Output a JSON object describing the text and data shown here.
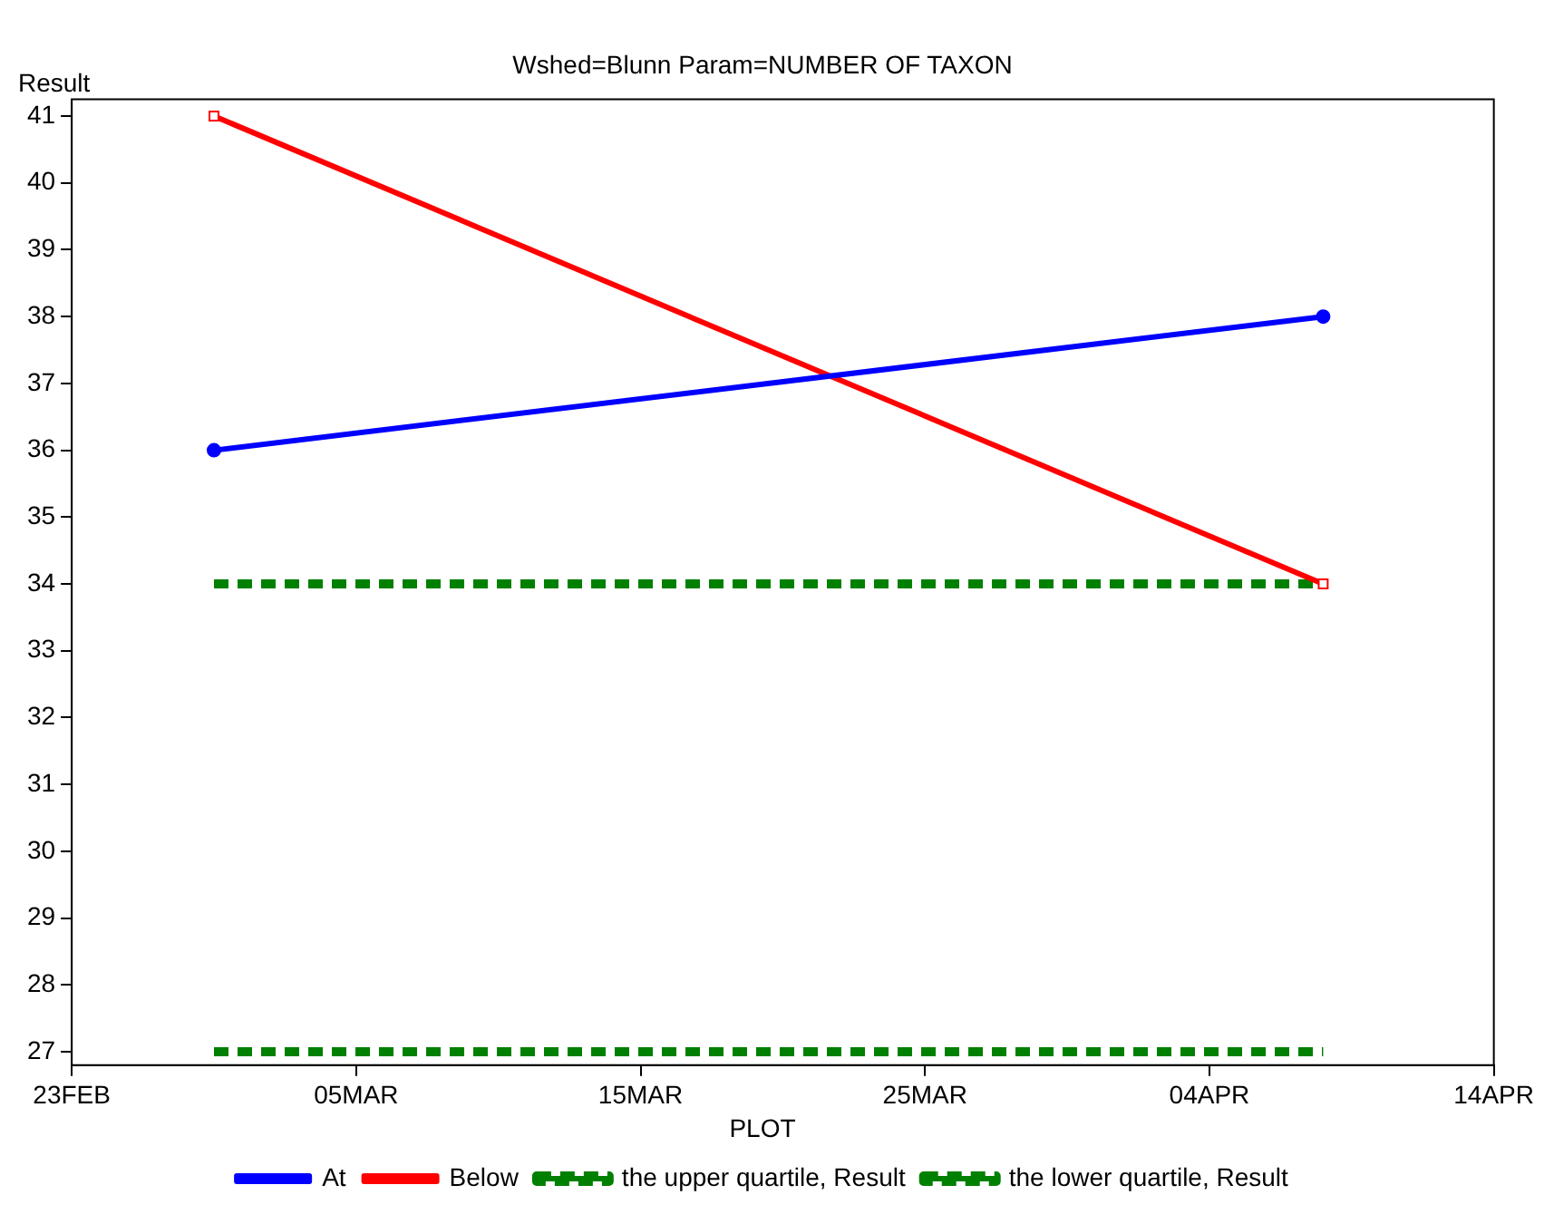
{
  "chart_data": {
    "type": "line",
    "title": "Wshed=Blunn Param=NUMBER OF TAXON",
    "ylabel": "Result",
    "legend_title": "PLOT",
    "legend": "bottom",
    "grid": false,
    "x": [
      "--02-28",
      "--04-08"
    ],
    "series": [
      {
        "name": "At",
        "color": "#0000ff",
        "values": [
          36,
          38
        ],
        "marker": "circle",
        "line_style": "solid"
      },
      {
        "name": "Below",
        "color": "#ff0000",
        "values": [
          41,
          34
        ],
        "marker": "square",
        "line_style": "solid"
      },
      {
        "name": "the upper quartile, Result",
        "color": "#008000",
        "values": [
          34,
          34
        ],
        "marker": "none",
        "line_style": "dashed"
      },
      {
        "name": "the lower quartile, Result",
        "color": "#008000",
        "values": [
          27,
          27
        ],
        "marker": "none",
        "line_style": "dashed"
      }
    ],
    "xlim": [
      "--02-23",
      "--04-14"
    ],
    "xticks": [
      {
        "value": "--02-23",
        "label": "23FEB"
      },
      {
        "value": "--03-05",
        "label": "05MAR"
      },
      {
        "value": "--03-15",
        "label": "15MAR"
      },
      {
        "value": "--03-25",
        "label": "25MAR"
      },
      {
        "value": "--04-04",
        "label": "04APR"
      },
      {
        "value": "--04-14",
        "label": "14APR"
      }
    ],
    "ylim": [
      26.8,
      41.25
    ],
    "yticks": [
      27,
      28,
      29,
      30,
      31,
      32,
      33,
      34,
      35,
      36,
      37,
      38,
      39,
      40,
      41
    ]
  }
}
